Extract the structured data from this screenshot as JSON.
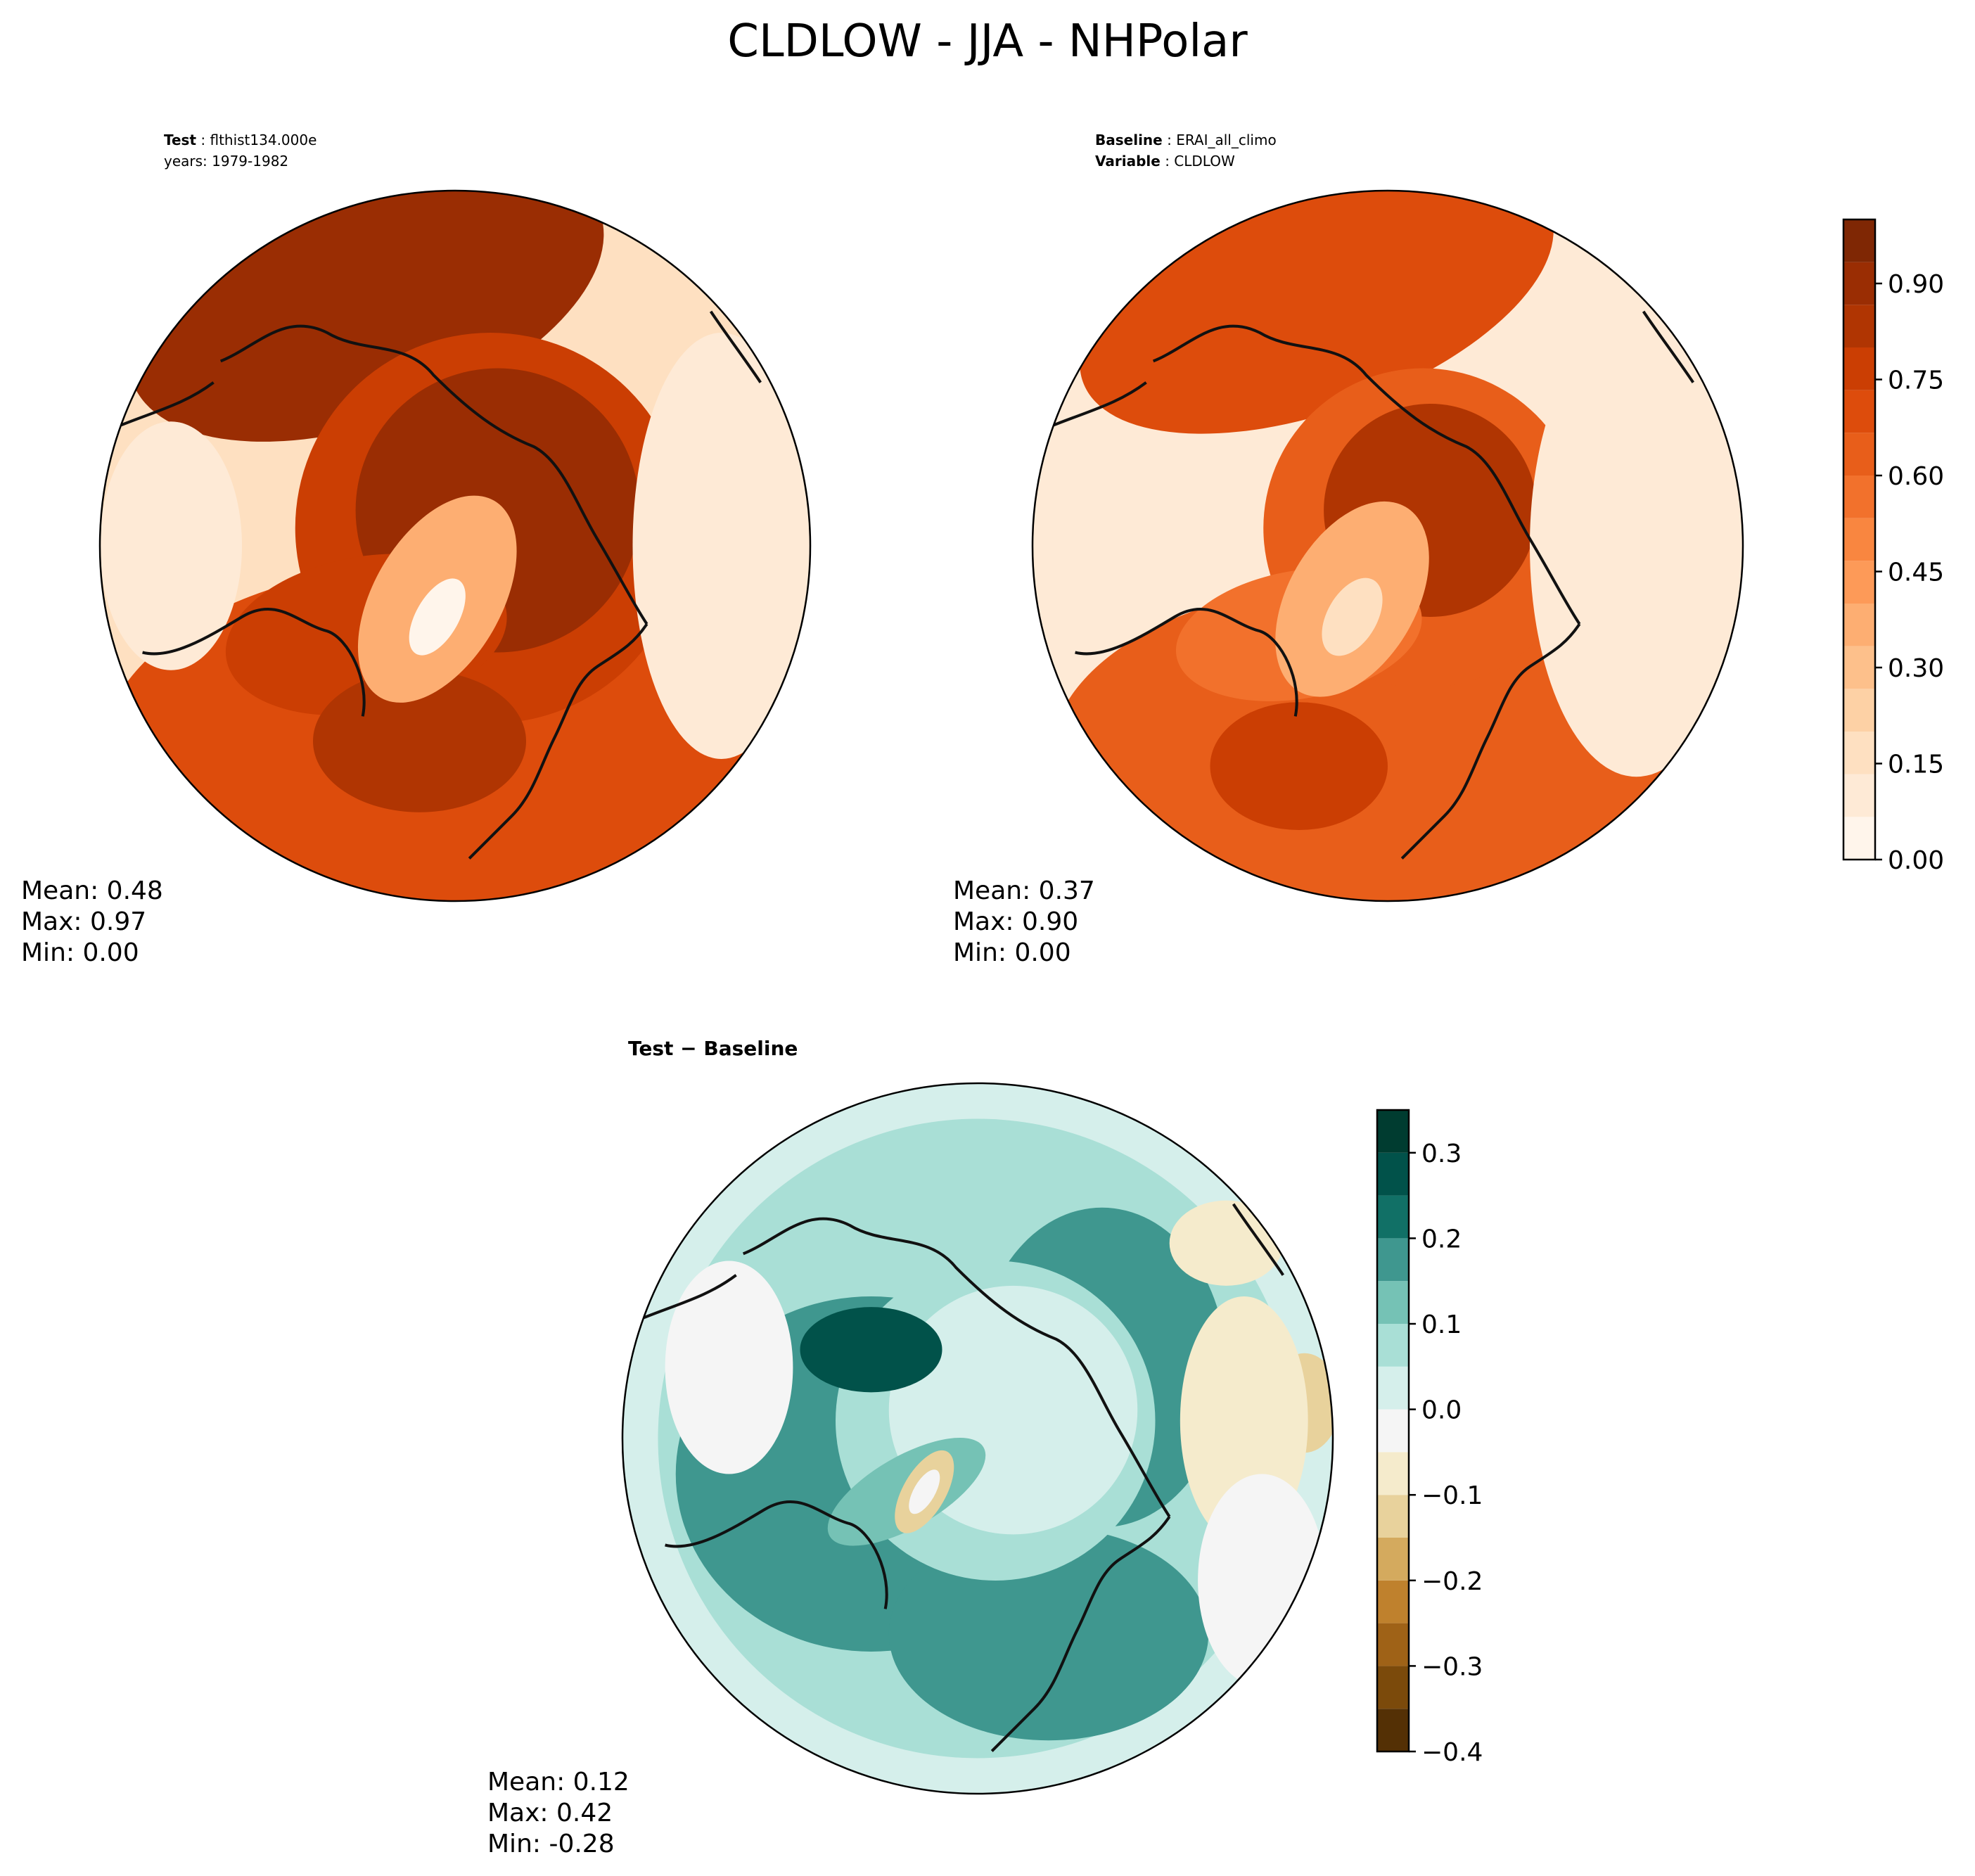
{
  "figure_title": "CLDLOW - JJA - NHPolar",
  "panels": {
    "test": {
      "label_bold": "Test",
      "label_value": "flthist134.000e",
      "line2": "years: 1979-1982",
      "stats": [
        "Mean:  0.48",
        "Max:  0.97",
        "Min:  0.00"
      ]
    },
    "baseline": {
      "label_bold": "Baseline",
      "label_value": "ERAI_all_climo",
      "line2_bold": "Variable",
      "line2_value": "CLDLOW",
      "stats": [
        "Mean:  0.37",
        "Max:  0.90",
        "Min:  0.00"
      ]
    },
    "diff": {
      "label": "Test − Baseline",
      "stats": [
        "Mean:  0.12",
        "Max:  0.42",
        "Min: -0.28"
      ]
    }
  },
  "colors": {
    "oranges": [
      "#fff5eb",
      "#feead6",
      "#fee0c1",
      "#fdd1a5",
      "#fdc08b",
      "#fdae72",
      "#fd9a58",
      "#f98640",
      "#f2712c",
      "#e85e1a",
      "#dd4c0c",
      "#cb3e03",
      "#b03502",
      "#9a2d03",
      "#7f2704"
    ],
    "diverging": [
      "#543005",
      "#7b4a0b",
      "#9f6217",
      "#bf812d",
      "#d4aa5e",
      "#e8d29c",
      "#f5ebcc",
      "#f5f5f5",
      "#d5efeb",
      "#a9dfd6",
      "#75c2b5",
      "#3f978f",
      "#117066",
      "#01524a",
      "#003c30"
    ],
    "coast": "#111111"
  },
  "chart_data": [
    {
      "type": "heatmap",
      "name": "test",
      "projection": "NHPolar",
      "variable": "CLDLOW",
      "mean": 0.48,
      "max": 0.97,
      "min": 0.0
    },
    {
      "type": "heatmap",
      "name": "baseline",
      "projection": "NHPolar",
      "variable": "CLDLOW",
      "mean": 0.37,
      "max": 0.9,
      "min": 0.0,
      "colorbar": {
        "range": [
          0.0,
          1.0
        ],
        "ticks": [
          0.0,
          0.15,
          0.3,
          0.45,
          0.6,
          0.75,
          0.9
        ],
        "tick_labels": [
          "0.00",
          "0.15",
          "0.30",
          "0.45",
          "0.60",
          "0.75",
          "0.90"
        ]
      }
    },
    {
      "type": "heatmap",
      "name": "test-baseline",
      "projection": "NHPolar",
      "mean": 0.12,
      "max": 0.42,
      "min": -0.28,
      "colorbar": {
        "range": [
          -0.4,
          0.35
        ],
        "ticks": [
          -0.4,
          -0.3,
          -0.2,
          -0.1,
          0.0,
          0.1,
          0.2,
          0.3
        ],
        "tick_labels": [
          "−0.4",
          "−0.3",
          "−0.2",
          "−0.1",
          "0.0",
          "0.1",
          "0.2",
          "0.3"
        ]
      }
    }
  ]
}
